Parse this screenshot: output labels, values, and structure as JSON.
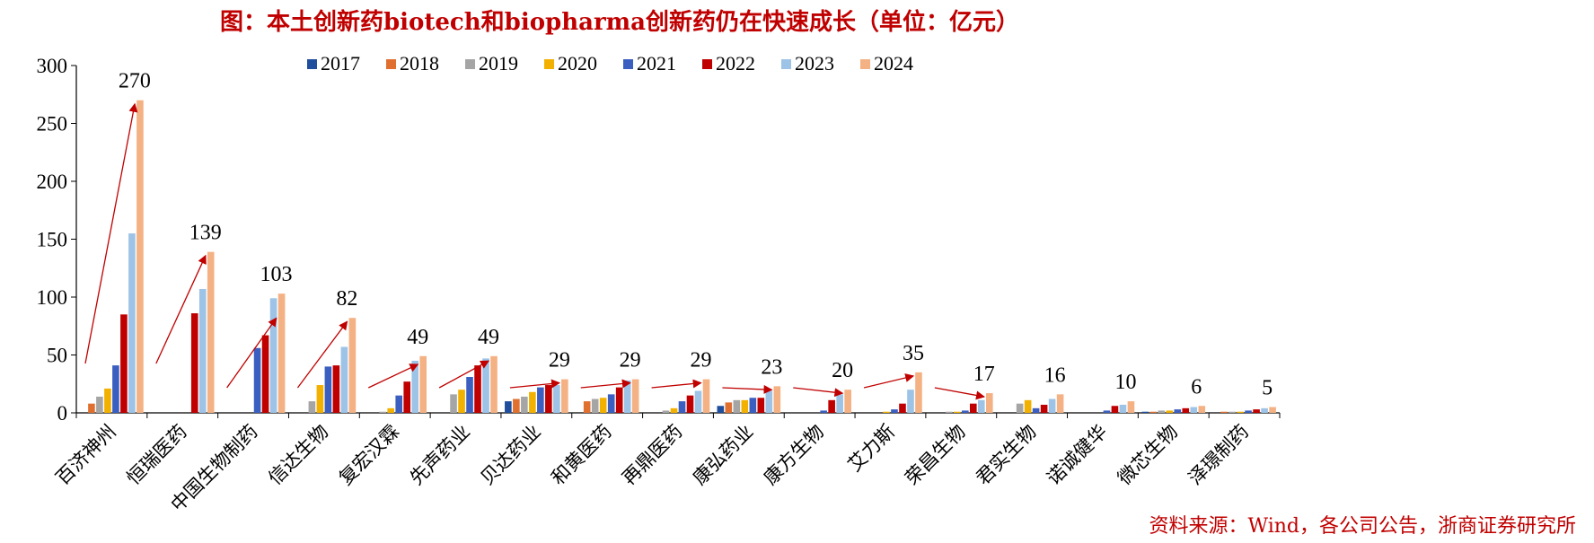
{
  "chart_data": {
    "type": "bar",
    "title": "图：本土创新药biotech和biopharma创新药仍在快速成长（单位：亿元）",
    "source": "资料来源：Wind，各公司公告，浙商证券研究所",
    "ylim": [
      0,
      300
    ],
    "yticks": [
      "0",
      "50",
      "100",
      "150",
      "200",
      "250",
      "300"
    ],
    "grid": false,
    "legend_position": "top",
    "categories": [
      "百济神州",
      "恒瑞医药",
      "中国生物制药",
      "信达生物",
      "复宏汉霖",
      "先声药业",
      "贝达药业",
      "和黄医药",
      "再鼎医药",
      "康弘药业",
      "康方生物",
      "艾力斯",
      "荣昌生物",
      "君实生物",
      "诺诚健华",
      "微芯生物",
      "泽璟制药"
    ],
    "series": [
      {
        "name": "2017",
        "color": "#1F4E9C",
        "values": [
          0,
          0,
          0,
          0,
          0,
          0,
          10,
          0,
          0,
          6,
          0,
          0,
          0,
          0,
          0,
          1,
          0
        ]
      },
      {
        "name": "2018",
        "color": "#E07030",
        "values": [
          8,
          0,
          0,
          0,
          0,
          0,
          12,
          10,
          0,
          9,
          0,
          0,
          0,
          0,
          0,
          1,
          1
        ]
      },
      {
        "name": "2019",
        "color": "#A5A5A5",
        "values": [
          14,
          0,
          0,
          10,
          1,
          16,
          14,
          12,
          2,
          11,
          0,
          0,
          1,
          8,
          0,
          2,
          1
        ]
      },
      {
        "name": "2020",
        "color": "#F2B000",
        "values": [
          21,
          0,
          0,
          24,
          4,
          20,
          18,
          13,
          4,
          11,
          0,
          1,
          1,
          11,
          0,
          2,
          1
        ]
      },
      {
        "name": "2021",
        "color": "#3B5FC0",
        "values": [
          41,
          0,
          56,
          40,
          15,
          31,
          22,
          16,
          10,
          13,
          2,
          3,
          2,
          4,
          2,
          3,
          2
        ]
      },
      {
        "name": "2022",
        "color": "#C00000",
        "values": [
          85,
          86,
          67,
          41,
          27,
          41,
          24,
          22,
          15,
          13,
          11,
          8,
          8,
          7,
          6,
          4,
          3
        ]
      },
      {
        "name": "2023",
        "color": "#9DC3E6",
        "values": [
          155,
          107,
          99,
          57,
          45,
          47,
          24,
          28,
          19,
          19,
          16,
          20,
          11,
          12,
          7,
          5,
          4
        ]
      },
      {
        "name": "2024",
        "color": "#F4B183",
        "values": [
          270,
          139,
          103,
          82,
          49,
          49,
          29,
          29,
          29,
          23,
          20,
          35,
          17,
          16,
          10,
          6,
          5
        ]
      }
    ],
    "data_labels": [
      "270",
      "139",
      "103",
      "82",
      "49",
      "49",
      "29",
      "29",
      "29",
      "23",
      "20",
      "35",
      "17",
      "16",
      "10",
      "6",
      "5"
    ],
    "arrow_targets": [
      270,
      139,
      85,
      82,
      45,
      48,
      29,
      29,
      29,
      23,
      20,
      35,
      17
    ],
    "arrow_color": "#C00000"
  }
}
